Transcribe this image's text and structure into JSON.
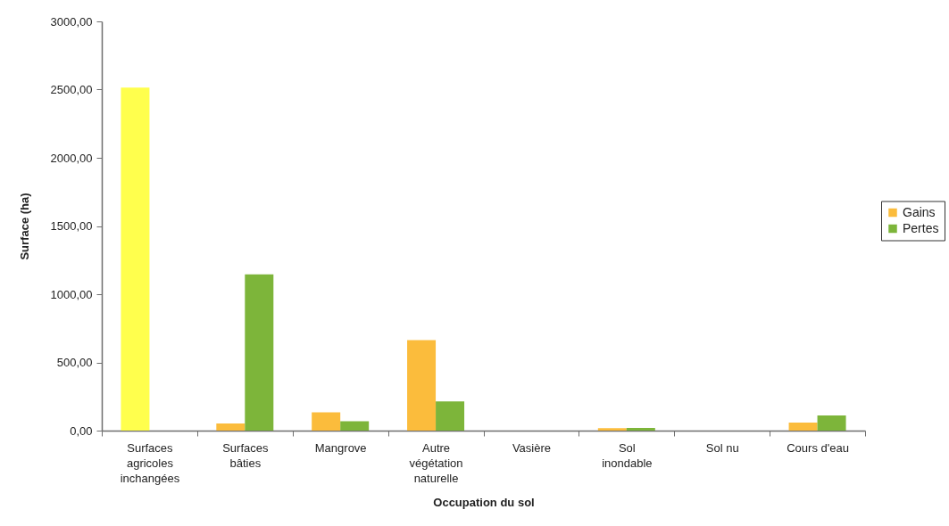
{
  "chart_data": {
    "type": "bar",
    "xlabel": "Occupation du sol",
    "ylabel": "Surface (ha)",
    "categories": [
      "Surfaces agricoles inchangées",
      "Surfaces bâties",
      "Mangrove",
      "Autre végétation naturelle",
      "Vasière",
      "Sol inondable",
      "Sol nu",
      "Cours d'eau"
    ],
    "series": [
      {
        "name": "Gains",
        "color": "#fbbc3c",
        "colors": [
          "#ffff4d",
          "#fbbc3c",
          "#fbbc3c",
          "#fbbc3c",
          "#fbbc3c",
          "#fbbc3c",
          "#fbbc3c",
          "#fbbc3c"
        ],
        "values": [
          2515,
          52,
          134,
          664,
          0,
          18,
          0,
          59
        ]
      },
      {
        "name": "Pertes",
        "color": "#7db53a",
        "values": [
          0,
          1145,
          68,
          214,
          0,
          20,
          0,
          111
        ]
      }
    ],
    "ylim": [
      0,
      3000
    ],
    "yticks": [
      {
        "value": 0,
        "label": "0,00"
      },
      {
        "value": 500,
        "label": "500,00"
      },
      {
        "value": 1000,
        "label": "1000,00"
      },
      {
        "value": 1500,
        "label": "1500,00"
      },
      {
        "value": 2000,
        "label": "2000,00"
      },
      {
        "value": 2500,
        "label": "2500,00"
      },
      {
        "value": 3000,
        "label": "3000,00"
      }
    ],
    "legend": "right"
  }
}
